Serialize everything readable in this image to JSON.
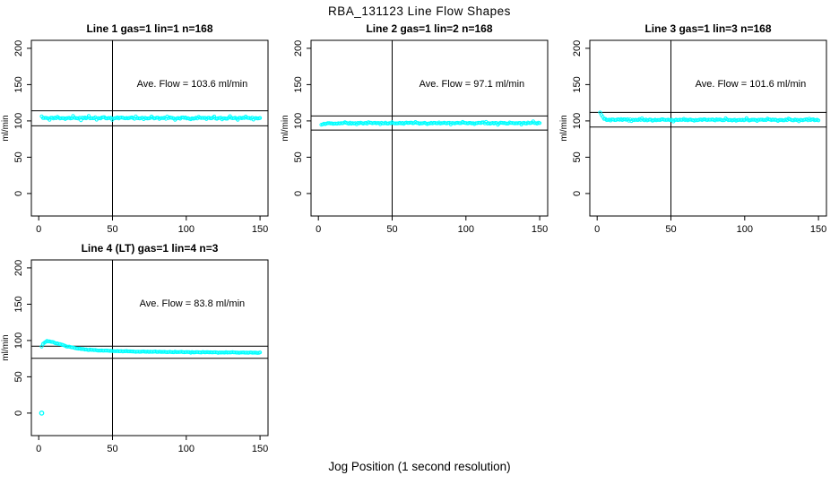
{
  "chart_data": {
    "type": "scatter",
    "title": "RBA_131123  Line Flow Shapes",
    "xlabel": "Jog Position (1 second resolution)",
    "ylabel": "ml/min",
    "x_ticks": [
      0,
      50,
      100,
      150
    ],
    "y_ticks": [
      0,
      50,
      100,
      150,
      200
    ],
    "xlim": [
      -5,
      155.4
    ],
    "ylim": [
      -31,
      211
    ],
    "grid": false,
    "marker": {
      "shape": "open-circle",
      "color": "#00ffff"
    },
    "axis_color": "#000000",
    "vline_x": 50,
    "panels": [
      {
        "title": "Line 1 gas=1 lin=1 n=168",
        "annotation": "Ave. Flow =  103.6  ml/min",
        "ave_flow": 103.6,
        "n": 168,
        "ref_lines": [
          113.96,
          93.24
        ],
        "x_range": [
          2,
          150
        ],
        "n_points": 168,
        "series_profile": [
          [
            2,
            104
          ],
          [
            150,
            104
          ]
        ],
        "noise_sd": 0.9,
        "spike": {
          "every": 6,
          "amp": 2.0
        },
        "outliers": [],
        "seed": 11,
        "col": 0,
        "row": 0
      },
      {
        "title": "Line 2 gas=1 lin=2 n=168",
        "annotation": "Ave. Flow =  97.1  ml/min",
        "ave_flow": 97.1,
        "n": 168,
        "ref_lines": [
          106.81,
          87.39
        ],
        "x_range": [
          2,
          150
        ],
        "n_points": 168,
        "series_profile": [
          [
            2,
            94
          ],
          [
            4,
            96.5
          ],
          [
            8,
            97
          ],
          [
            150,
            97
          ]
        ],
        "noise_sd": 0.8,
        "spike": {
          "every": 9,
          "amp": 1.4
        },
        "outliers": [],
        "seed": 22,
        "col": 1,
        "row": 0
      },
      {
        "title": "Line 3 gas=1 lin=3 n=168",
        "annotation": "Ave. Flow =  101.6  ml/min",
        "ave_flow": 101.6,
        "n": 168,
        "ref_lines": [
          111.76,
          91.44
        ],
        "x_range": [
          2,
          150
        ],
        "n_points": 168,
        "series_profile": [
          [
            2,
            110.5
          ],
          [
            3,
            108
          ],
          [
            4,
            104
          ],
          [
            5,
            102.5
          ],
          [
            7,
            101.5
          ],
          [
            150,
            101.3
          ]
        ],
        "noise_sd": 0.8,
        "spike": {
          "every": 8,
          "amp": 1.5
        },
        "outliers": [],
        "seed": 33,
        "col": 2,
        "row": 0
      },
      {
        "title": "Line 4 (LT) gas=1 lin=4 n=3",
        "annotation": "Ave. Flow =  83.8  ml/min",
        "ave_flow": 83.8,
        "n": 3,
        "ref_lines": [
          92.18,
          75.42
        ],
        "x_range": [
          2,
          150
        ],
        "n_points": 168,
        "series_profile": [
          [
            2,
            92
          ],
          [
            3,
            95.5
          ],
          [
            5,
            98.8
          ],
          [
            7,
            99
          ],
          [
            10,
            97.5
          ],
          [
            15,
            94.5
          ],
          [
            20,
            91.5
          ],
          [
            25,
            89.5
          ],
          [
            30,
            88
          ],
          [
            40,
            86.3
          ],
          [
            50,
            85.6
          ],
          [
            70,
            84.6
          ],
          [
            100,
            83.9
          ],
          [
            150,
            83.3
          ]
        ],
        "noise_sd": 0.5,
        "spike": null,
        "outliers": [
          [
            2,
            0
          ]
        ],
        "seed": 44,
        "col": 0,
        "row": 1
      }
    ]
  }
}
